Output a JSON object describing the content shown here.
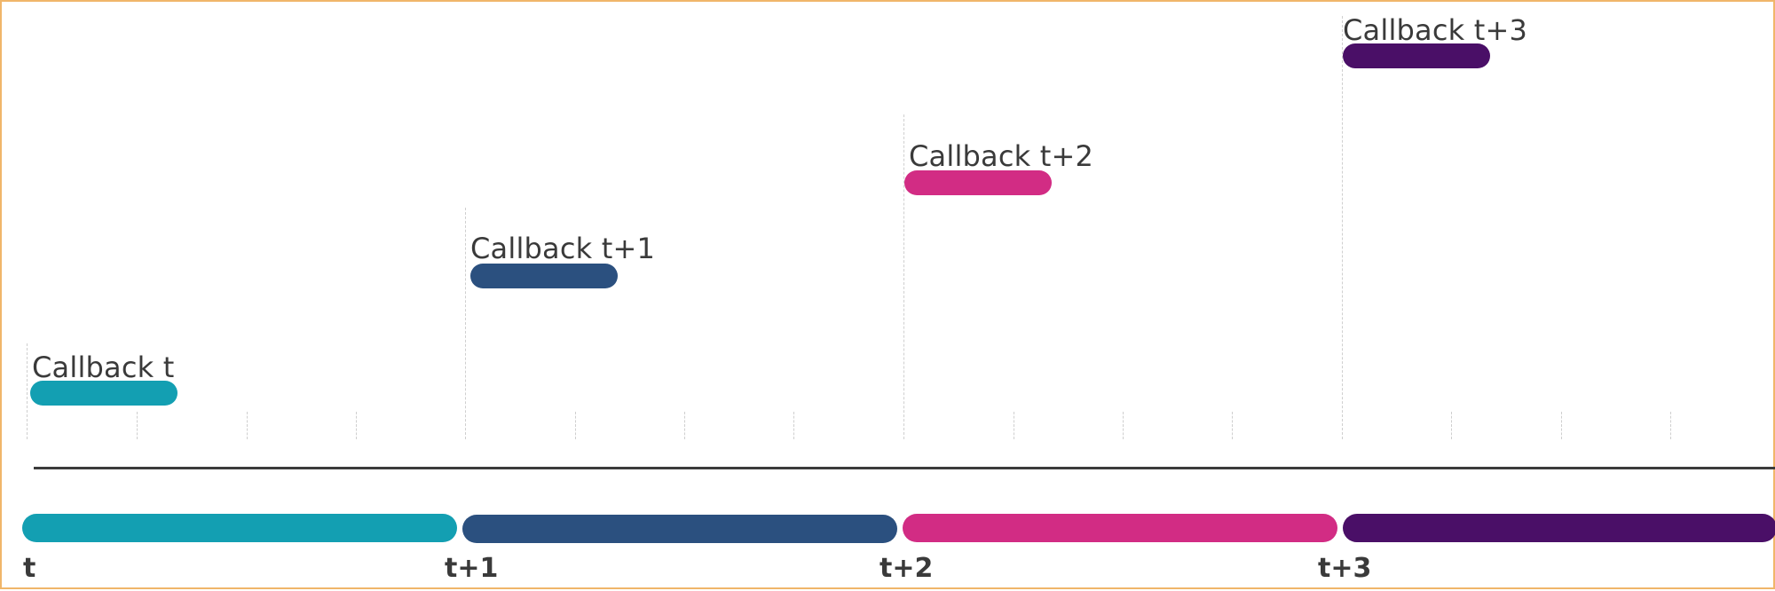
{
  "callbacks": [
    {
      "label": "Callback t",
      "color": "#139fb2"
    },
    {
      "label": "Callback t+1",
      "color": "#2b507f"
    },
    {
      "label": "Callback t+2",
      "color": "#d22c84"
    },
    {
      "label": "Callback t+3",
      "color": "#4a0f67"
    }
  ],
  "periods": [
    {
      "label": "t",
      "color": "#139fb2"
    },
    {
      "label": "t+1",
      "color": "#2b507f"
    },
    {
      "label": "t+2",
      "color": "#d22c84"
    },
    {
      "label": "t+3",
      "color": "#4a0f67"
    }
  ],
  "colors": {
    "frame_border": "#f0b66a",
    "axis": "#3b3b3b",
    "guide": "#cfcfcf",
    "text": "#3a3a3a"
  }
}
